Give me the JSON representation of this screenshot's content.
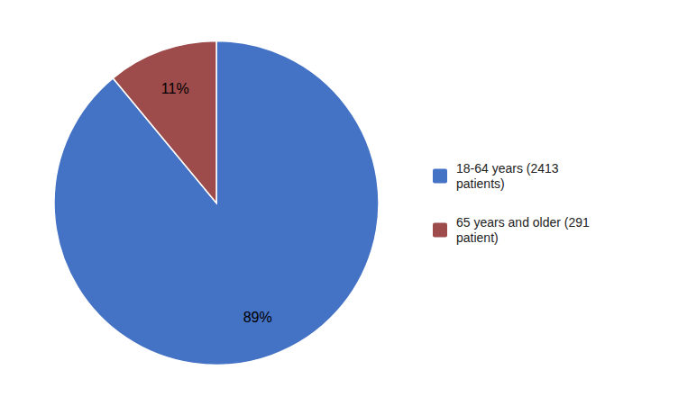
{
  "chart_data": {
    "type": "pie",
    "categories": [
      "18-64 years (2413\npatients)",
      "65 years and older (291\npatient)"
    ],
    "values": [
      89,
      11
    ],
    "value_labels": [
      "89%",
      "11%"
    ],
    "colors": [
      "#4472C4",
      "#9E4B4B"
    ],
    "data_labels": true,
    "legend": "right"
  }
}
